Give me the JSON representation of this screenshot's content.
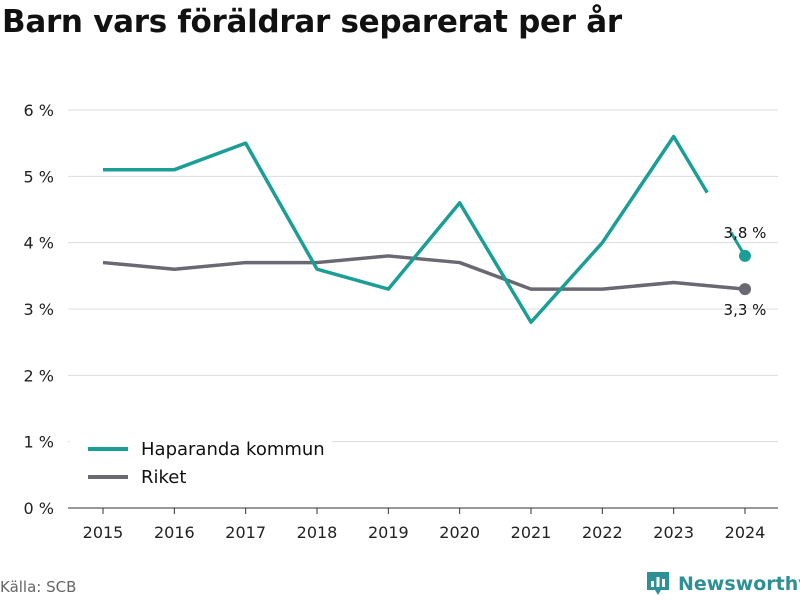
{
  "title": "Barn vars föräldrar separerat per år",
  "source": "Källa: SCB",
  "brand": "Newsworthy",
  "colors": {
    "haparanda": "#1a9e96",
    "riket": "#6a6870",
    "grid": "#dcdcdc",
    "brand": "#2e8f95"
  },
  "chart_data": {
    "type": "line",
    "title": "Barn vars föräldrar separerat per år",
    "x": [
      "2015",
      "2016",
      "2017",
      "2018",
      "2019",
      "2020",
      "2021",
      "2022",
      "2023",
      "2024"
    ],
    "y_ticks": [
      "0 %",
      "1 %",
      "2 %",
      "3 %",
      "4 %",
      "5 %",
      "6 %"
    ],
    "ylim": [
      0,
      6
    ],
    "grid": true,
    "legend_position": "bottom-left",
    "series": [
      {
        "name": "Haparanda kommun",
        "values": [
          5.1,
          5.1,
          5.5,
          3.6,
          3.3,
          4.6,
          2.8,
          4.0,
          5.6,
          3.8
        ],
        "end_label": "3,8 %"
      },
      {
        "name": "Riket",
        "values": [
          3.7,
          3.6,
          3.7,
          3.7,
          3.8,
          3.7,
          3.3,
          3.3,
          3.4,
          3.3
        ],
        "end_label": "3,3 %"
      }
    ]
  }
}
